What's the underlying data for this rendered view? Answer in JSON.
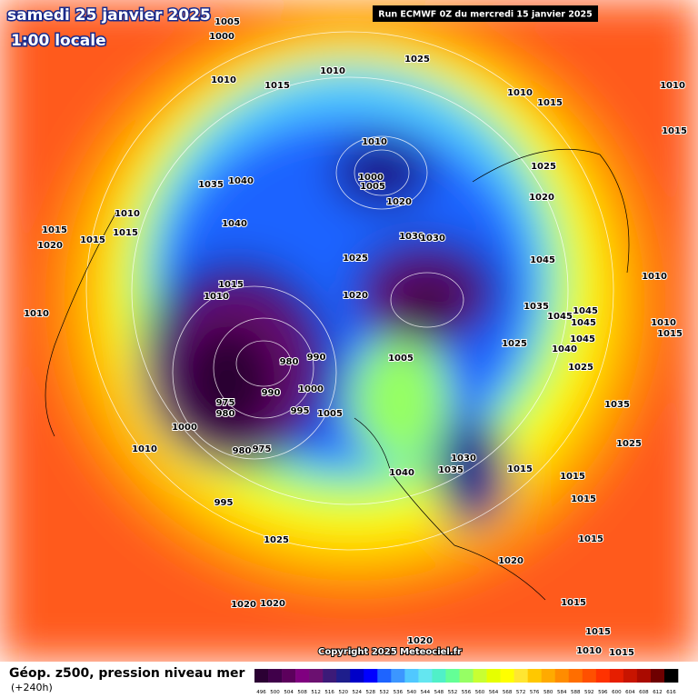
{
  "header": {
    "title": "samedi 25 janvier 2025",
    "time": "1:00 locale",
    "run": "Run ECMWF 0Z du mercredi 15 janvier 2025"
  },
  "footer": {
    "caption": "Géop. z500, pression niveau mer",
    "lead": "(+240h)",
    "copyright": "Copyright 2025 Meteociel.fr"
  },
  "colorbar": {
    "labels": [
      496,
      500,
      504,
      508,
      512,
      516,
      520,
      524,
      528,
      532,
      536,
      540,
      544,
      548,
      552,
      556,
      560,
      564,
      568,
      572,
      576,
      580,
      584,
      588,
      592,
      596,
      600,
      604,
      608,
      612,
      616
    ],
    "colors": [
      "#2b0033",
      "#40004a",
      "#5c005c",
      "#800080",
      "#6b1070",
      "#3c1a78",
      "#1e1e8c",
      "#0000c8",
      "#0000ff",
      "#1e64ff",
      "#3c96ff",
      "#50c8ff",
      "#64e6f0",
      "#50f0c8",
      "#64ff96",
      "#96ff64",
      "#c8ff32",
      "#e6ff00",
      "#ffff00",
      "#ffe632",
      "#ffc800",
      "#ffaa00",
      "#ff8c00",
      "#ff6e00",
      "#ff5000",
      "#ff3200",
      "#e61e00",
      "#c81400",
      "#aa0a00",
      "#6e0000",
      "#000000"
    ]
  },
  "isobar_labels": [
    1005,
    1000,
    1010,
    1025,
    1010,
    1015,
    1010,
    1015,
    1010,
    1015,
    1010,
    1000,
    1005,
    1025,
    1035,
    1040,
    1020,
    1020,
    1040,
    1010,
    1015,
    1015,
    1020,
    1015,
    1030,
    1030,
    1025,
    1045,
    1010,
    1015,
    1010,
    1020,
    1035,
    1010,
    1045,
    1045,
    1045,
    1010,
    1015,
    1025,
    1045,
    1040,
    980,
    990,
    1005,
    1025,
    990,
    1000,
    975,
    980,
    995,
    1005,
    1035,
    1000,
    1010,
    980,
    975,
    1025,
    1030,
    1035,
    1015,
    1040,
    1015,
    1015,
    995,
    1025,
    1015,
    1020,
    1020,
    1020,
    1015,
    1015,
    1020,
    1010,
    1015
  ]
}
